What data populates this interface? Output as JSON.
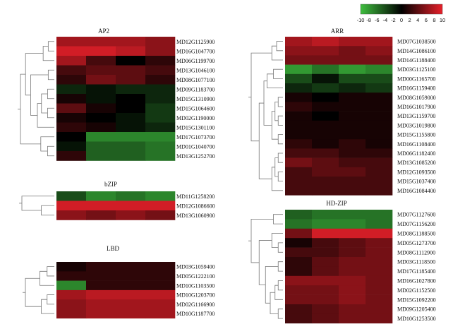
{
  "color_scale": {
    "ticks": [
      "-10",
      "-8",
      "-6",
      "-4",
      "-2",
      "0",
      "2",
      "4",
      "6",
      "8",
      "10"
    ],
    "min": -10,
    "max": 10,
    "colors": [
      "#3fbf3f",
      "#000000",
      "#e8202a"
    ]
  },
  "panels": [
    {
      "title": "AP2",
      "rows": [
        {
          "label": "MD12G1125900",
          "values": [
            7,
            7,
            7,
            6
          ]
        },
        {
          "label": "MD16G1047700",
          "values": [
            9,
            9,
            8,
            6
          ]
        },
        {
          "label": "MD06G1199700",
          "values": [
            7,
            3,
            0,
            2
          ]
        },
        {
          "label": "MD13G1046100",
          "values": [
            3,
            4,
            4,
            3
          ]
        },
        {
          "label": "MD08G1077100",
          "values": [
            2,
            5,
            4,
            2
          ]
        },
        {
          "label": "MD09G1183700",
          "values": [
            -2,
            -1,
            -2,
            -2
          ]
        },
        {
          "label": "MD15G1310900",
          "values": [
            1,
            -1,
            0,
            -2
          ]
        },
        {
          "label": "MD15G1064600",
          "values": [
            4,
            1,
            0,
            -3
          ]
        },
        {
          "label": "MD02G1190000",
          "values": [
            1,
            0,
            -1,
            -3
          ]
        },
        {
          "label": "MD15G1301100",
          "values": [
            2,
            1,
            -1,
            -2
          ]
        },
        {
          "label": "MD17G1073700",
          "values": [
            0,
            -7,
            -7,
            -7
          ]
        },
        {
          "label": "MD01G1040700",
          "values": [
            -1,
            -5,
            -5,
            -6
          ]
        },
        {
          "label": "MD13G1252700",
          "values": [
            2,
            -5,
            -5,
            -6
          ]
        }
      ]
    },
    {
      "title": "bZIP",
      "rows": [
        {
          "label": "MD11G1258200",
          "values": [
            -4,
            -7,
            -6,
            -7
          ]
        },
        {
          "label": "MD12G1086600",
          "values": [
            9,
            9,
            9,
            9
          ]
        },
        {
          "label": "MD13G1060900",
          "values": [
            6,
            5,
            6,
            5
          ]
        }
      ]
    },
    {
      "title": "LBD",
      "rows": [
        {
          "label": "MD03G1059400",
          "values": [
            1,
            2,
            2,
            2
          ]
        },
        {
          "label": "MD05G1222100",
          "values": [
            2,
            2,
            2,
            2
          ]
        },
        {
          "label": "MD10G1103500",
          "values": [
            -7,
            2,
            2,
            2
          ]
        },
        {
          "label": "MD10G1203700",
          "values": [
            7,
            8,
            8,
            8
          ]
        },
        {
          "label": "MD02G1166900",
          "values": [
            6,
            7,
            7,
            7
          ]
        },
        {
          "label": "MD10G1187700",
          "values": [
            6,
            7,
            7,
            7
          ]
        }
      ]
    },
    {
      "title": "ARR",
      "rows": [
        {
          "label": "MD07G1038500",
          "values": [
            7,
            8,
            7,
            7
          ]
        },
        {
          "label": "MD14G1086100",
          "values": [
            6,
            6,
            5,
            6
          ]
        },
        {
          "label": "MD14G1188400",
          "values": [
            5,
            5,
            5,
            5
          ]
        },
        {
          "label": "MD03G1125100",
          "values": [
            -8,
            -6,
            -8,
            -7
          ]
        },
        {
          "label": "MD00G1165700",
          "values": [
            -4,
            -1,
            -4,
            -4
          ]
        },
        {
          "label": "MD16G1159400",
          "values": [
            -2,
            -3,
            -2,
            -3
          ]
        },
        {
          "label": "MD08G1059000",
          "values": [
            1,
            0,
            1,
            1
          ]
        },
        {
          "label": "MD16G1017900",
          "values": [
            2,
            1,
            1,
            1
          ]
        },
        {
          "label": "MD13G1159700",
          "values": [
            1,
            0,
            1,
            1
          ]
        },
        {
          "label": "MD03G1019800",
          "values": [
            1,
            1,
            1,
            1
          ]
        },
        {
          "label": "MD15G1155800",
          "values": [
            1,
            1,
            1,
            1
          ]
        },
        {
          "label": "MD16G1108400",
          "values": [
            2,
            1,
            2,
            1
          ]
        },
        {
          "label": "MD06G1182400",
          "values": [
            3,
            3,
            2,
            2
          ]
        },
        {
          "label": "MD13G1085200",
          "values": [
            5,
            4,
            3,
            3
          ]
        },
        {
          "label": "MD12G1093500",
          "values": [
            3,
            4,
            4,
            3
          ]
        },
        {
          "label": "MD15G1037400",
          "values": [
            3,
            3,
            3,
            3
          ]
        },
        {
          "label": "MD16G1084400",
          "values": [
            3,
            3,
            3,
            3
          ]
        }
      ]
    },
    {
      "title": "HD-ZIP",
      "rows": [
        {
          "label": "MD07G1127600",
          "values": [
            -5,
            -6,
            -6,
            -6
          ]
        },
        {
          "label": "MD07G1156200",
          "values": [
            -6,
            -7,
            -7,
            -6
          ]
        },
        {
          "label": "MD08G1188500",
          "values": [
            5,
            9,
            9,
            9
          ]
        },
        {
          "label": "MD05G1273700",
          "values": [
            1,
            3,
            4,
            5
          ]
        },
        {
          "label": "MD08G1112900",
          "values": [
            3,
            3,
            4,
            5
          ]
        },
        {
          "label": "MD03G1118500",
          "values": [
            2,
            4,
            5,
            5
          ]
        },
        {
          "label": "MD17G1185400",
          "values": [
            2,
            4,
            5,
            5
          ]
        },
        {
          "label": "MD16G1027800",
          "values": [
            6,
            6,
            6,
            5
          ]
        },
        {
          "label": "MD02G1152500",
          "values": [
            5,
            5,
            6,
            5
          ]
        },
        {
          "label": "MD15G1092200",
          "values": [
            5,
            5,
            6,
            5
          ]
        },
        {
          "label": "MD09G1205400",
          "values": [
            3,
            4,
            5,
            5
          ]
        },
        {
          "label": "MD10G1253500",
          "values": [
            3,
            4,
            5,
            5
          ]
        }
      ]
    }
  ]
}
